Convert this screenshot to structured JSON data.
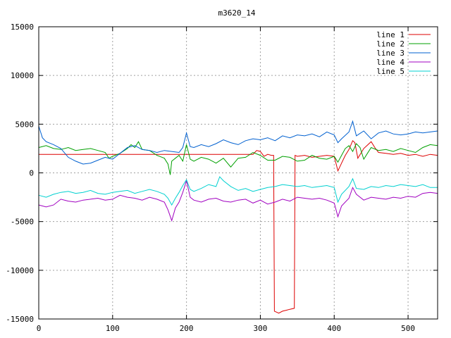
{
  "chart_data": {
    "type": "line",
    "title": "m3620_14",
    "xlabel": "",
    "ylabel": "",
    "xlim": [
      0,
      540
    ],
    "ylim": [
      -15000,
      15000
    ],
    "xticks": [
      0,
      100,
      200,
      300,
      400,
      500
    ],
    "yticks": [
      -15000,
      -10000,
      -5000,
      0,
      5000,
      10000,
      15000
    ],
    "grid": true,
    "legend_position": "top-right",
    "series": [
      {
        "name": "line 1",
        "color": "#dd0000",
        "points": [
          [
            0,
            1900
          ],
          [
            100,
            1900
          ],
          [
            200,
            1900
          ],
          [
            290,
            1900
          ],
          [
            295,
            2300
          ],
          [
            300,
            2200
          ],
          [
            305,
            1700
          ],
          [
            310,
            1900
          ],
          [
            315,
            1800
          ],
          [
            318,
            1800
          ],
          [
            319,
            -14200
          ],
          [
            325,
            -14400
          ],
          [
            330,
            -14200
          ],
          [
            335,
            -14100
          ],
          [
            340,
            -14000
          ],
          [
            346,
            -13900
          ],
          [
            347,
            1800
          ],
          [
            350,
            1700
          ],
          [
            360,
            1800
          ],
          [
            370,
            1600
          ],
          [
            380,
            1700
          ],
          [
            390,
            1800
          ],
          [
            400,
            1700
          ],
          [
            405,
            200
          ],
          [
            410,
            1000
          ],
          [
            415,
            1800
          ],
          [
            420,
            2400
          ],
          [
            425,
            3300
          ],
          [
            428,
            3100
          ],
          [
            432,
            1500
          ],
          [
            440,
            2500
          ],
          [
            450,
            3200
          ],
          [
            455,
            2600
          ],
          [
            460,
            2100
          ],
          [
            470,
            2000
          ],
          [
            480,
            1900
          ],
          [
            490,
            2000
          ],
          [
            500,
            1800
          ],
          [
            510,
            1900
          ],
          [
            520,
            1700
          ],
          [
            530,
            1900
          ],
          [
            540,
            1800
          ]
        ]
      },
      {
        "name": "line 2",
        "color": "#00a000",
        "points": [
          [
            0,
            2600
          ],
          [
            10,
            2800
          ],
          [
            20,
            2500
          ],
          [
            30,
            2400
          ],
          [
            40,
            2600
          ],
          [
            50,
            2300
          ],
          [
            60,
            2400
          ],
          [
            70,
            2500
          ],
          [
            80,
            2300
          ],
          [
            90,
            2100
          ],
          [
            95,
            1500
          ],
          [
            100,
            1700
          ],
          [
            110,
            2000
          ],
          [
            120,
            2500
          ],
          [
            125,
            2900
          ],
          [
            130,
            2600
          ],
          [
            135,
            3200
          ],
          [
            140,
            2400
          ],
          [
            150,
            2300
          ],
          [
            160,
            1800
          ],
          [
            170,
            1500
          ],
          [
            175,
            900
          ],
          [
            178,
            -200
          ],
          [
            180,
            1200
          ],
          [
            185,
            1500
          ],
          [
            190,
            1800
          ],
          [
            195,
            1200
          ],
          [
            200,
            2900
          ],
          [
            205,
            1400
          ],
          [
            210,
            1200
          ],
          [
            220,
            1600
          ],
          [
            230,
            1400
          ],
          [
            240,
            1000
          ],
          [
            250,
            1500
          ],
          [
            260,
            600
          ],
          [
            270,
            1500
          ],
          [
            280,
            1600
          ],
          [
            290,
            2100
          ],
          [
            300,
            1800
          ],
          [
            310,
            1300
          ],
          [
            320,
            1300
          ],
          [
            330,
            1700
          ],
          [
            340,
            1600
          ],
          [
            350,
            1200
          ],
          [
            360,
            1300
          ],
          [
            370,
            1800
          ],
          [
            380,
            1500
          ],
          [
            390,
            1400
          ],
          [
            400,
            1700
          ],
          [
            405,
            1100
          ],
          [
            410,
            1800
          ],
          [
            415,
            2500
          ],
          [
            420,
            2800
          ],
          [
            425,
            2200
          ],
          [
            430,
            3000
          ],
          [
            435,
            2600
          ],
          [
            440,
            1400
          ],
          [
            445,
            2000
          ],
          [
            450,
            2600
          ],
          [
            460,
            2300
          ],
          [
            470,
            2400
          ],
          [
            480,
            2200
          ],
          [
            490,
            2500
          ],
          [
            500,
            2300
          ],
          [
            510,
            2100
          ],
          [
            520,
            2600
          ],
          [
            530,
            2900
          ],
          [
            540,
            2800
          ]
        ]
      },
      {
        "name": "line 3",
        "color": "#0060d0",
        "points": [
          [
            0,
            4800
          ],
          [
            5,
            3600
          ],
          [
            10,
            3200
          ],
          [
            20,
            2900
          ],
          [
            30,
            2500
          ],
          [
            40,
            1600
          ],
          [
            50,
            1200
          ],
          [
            60,
            900
          ],
          [
            70,
            1000
          ],
          [
            80,
            1300
          ],
          [
            90,
            1600
          ],
          [
            100,
            1400
          ],
          [
            110,
            2000
          ],
          [
            120,
            2600
          ],
          [
            130,
            2800
          ],
          [
            140,
            2400
          ],
          [
            150,
            2300
          ],
          [
            160,
            2100
          ],
          [
            170,
            2300
          ],
          [
            180,
            2200
          ],
          [
            190,
            2100
          ],
          [
            195,
            2600
          ],
          [
            200,
            4100
          ],
          [
            205,
            2700
          ],
          [
            210,
            2600
          ],
          [
            220,
            2900
          ],
          [
            230,
            2700
          ],
          [
            240,
            3000
          ],
          [
            250,
            3400
          ],
          [
            260,
            3100
          ],
          [
            270,
            2900
          ],
          [
            280,
            3300
          ],
          [
            290,
            3500
          ],
          [
            300,
            3400
          ],
          [
            310,
            3600
          ],
          [
            320,
            3300
          ],
          [
            330,
            3800
          ],
          [
            340,
            3600
          ],
          [
            350,
            3900
          ],
          [
            360,
            3800
          ],
          [
            370,
            4000
          ],
          [
            380,
            3700
          ],
          [
            390,
            4200
          ],
          [
            400,
            3900
          ],
          [
            405,
            3100
          ],
          [
            410,
            3500
          ],
          [
            420,
            4200
          ],
          [
            425,
            5300
          ],
          [
            430,
            3800
          ],
          [
            440,
            4300
          ],
          [
            450,
            3500
          ],
          [
            460,
            4100
          ],
          [
            470,
            4300
          ],
          [
            480,
            4000
          ],
          [
            490,
            3900
          ],
          [
            500,
            4000
          ],
          [
            510,
            4200
          ],
          [
            520,
            4100
          ],
          [
            530,
            4200
          ],
          [
            540,
            4300
          ]
        ]
      },
      {
        "name": "line 4",
        "color": "#a000c0",
        "points": [
          [
            0,
            -3300
          ],
          [
            10,
            -3500
          ],
          [
            20,
            -3300
          ],
          [
            30,
            -2700
          ],
          [
            40,
            -2900
          ],
          [
            50,
            -3000
          ],
          [
            60,
            -2800
          ],
          [
            70,
            -2700
          ],
          [
            80,
            -2600
          ],
          [
            90,
            -2800
          ],
          [
            100,
            -2700
          ],
          [
            110,
            -2300
          ],
          [
            120,
            -2500
          ],
          [
            130,
            -2600
          ],
          [
            140,
            -2800
          ],
          [
            150,
            -2500
          ],
          [
            160,
            -2700
          ],
          [
            170,
            -3000
          ],
          [
            175,
            -3800
          ],
          [
            180,
            -4900
          ],
          [
            185,
            -3600
          ],
          [
            190,
            -3000
          ],
          [
            195,
            -2000
          ],
          [
            200,
            -800
          ],
          [
            205,
            -2500
          ],
          [
            210,
            -2800
          ],
          [
            220,
            -3000
          ],
          [
            230,
            -2700
          ],
          [
            240,
            -2600
          ],
          [
            250,
            -2900
          ],
          [
            260,
            -3000
          ],
          [
            270,
            -2800
          ],
          [
            280,
            -2700
          ],
          [
            290,
            -3100
          ],
          [
            300,
            -2800
          ],
          [
            310,
            -3200
          ],
          [
            320,
            -3000
          ],
          [
            330,
            -2700
          ],
          [
            340,
            -2900
          ],
          [
            350,
            -2500
          ],
          [
            360,
            -2600
          ],
          [
            370,
            -2700
          ],
          [
            380,
            -2600
          ],
          [
            390,
            -2800
          ],
          [
            400,
            -3100
          ],
          [
            405,
            -4500
          ],
          [
            410,
            -3400
          ],
          [
            420,
            -2600
          ],
          [
            425,
            -1500
          ],
          [
            430,
            -2200
          ],
          [
            440,
            -2800
          ],
          [
            450,
            -2500
          ],
          [
            460,
            -2600
          ],
          [
            470,
            -2700
          ],
          [
            480,
            -2500
          ],
          [
            490,
            -2600
          ],
          [
            500,
            -2400
          ],
          [
            510,
            -2500
          ],
          [
            520,
            -2100
          ],
          [
            530,
            -2000
          ],
          [
            540,
            -2100
          ]
        ]
      },
      {
        "name": "line 5",
        "color": "#00d0d0",
        "points": [
          [
            0,
            -2300
          ],
          [
            10,
            -2500
          ],
          [
            20,
            -2200
          ],
          [
            30,
            -2000
          ],
          [
            40,
            -1900
          ],
          [
            50,
            -2100
          ],
          [
            60,
            -2000
          ],
          [
            70,
            -1800
          ],
          [
            80,
            -2100
          ],
          [
            90,
            -2200
          ],
          [
            100,
            -2000
          ],
          [
            110,
            -1900
          ],
          [
            120,
            -1800
          ],
          [
            130,
            -2100
          ],
          [
            140,
            -1900
          ],
          [
            150,
            -1700
          ],
          [
            160,
            -1900
          ],
          [
            170,
            -2200
          ],
          [
            175,
            -2600
          ],
          [
            180,
            -3300
          ],
          [
            185,
            -2600
          ],
          [
            190,
            -2000
          ],
          [
            195,
            -1300
          ],
          [
            200,
            -700
          ],
          [
            205,
            -1700
          ],
          [
            210,
            -1900
          ],
          [
            220,
            -1600
          ],
          [
            230,
            -1200
          ],
          [
            240,
            -1400
          ],
          [
            245,
            -400
          ],
          [
            250,
            -800
          ],
          [
            260,
            -1400
          ],
          [
            270,
            -1800
          ],
          [
            280,
            -1600
          ],
          [
            290,
            -1900
          ],
          [
            300,
            -1700
          ],
          [
            310,
            -1500
          ],
          [
            320,
            -1400
          ],
          [
            330,
            -1200
          ],
          [
            340,
            -1300
          ],
          [
            350,
            -1400
          ],
          [
            360,
            -1300
          ],
          [
            370,
            -1500
          ],
          [
            380,
            -1400
          ],
          [
            390,
            -1300
          ],
          [
            400,
            -1500
          ],
          [
            405,
            -3000
          ],
          [
            410,
            -2200
          ],
          [
            420,
            -1400
          ],
          [
            425,
            -600
          ],
          [
            430,
            -1600
          ],
          [
            440,
            -1700
          ],
          [
            450,
            -1400
          ],
          [
            460,
            -1500
          ],
          [
            470,
            -1300
          ],
          [
            480,
            -1400
          ],
          [
            490,
            -1200
          ],
          [
            500,
            -1300
          ],
          [
            510,
            -1400
          ],
          [
            520,
            -1200
          ],
          [
            530,
            -1500
          ],
          [
            540,
            -1500
          ]
        ]
      }
    ]
  }
}
